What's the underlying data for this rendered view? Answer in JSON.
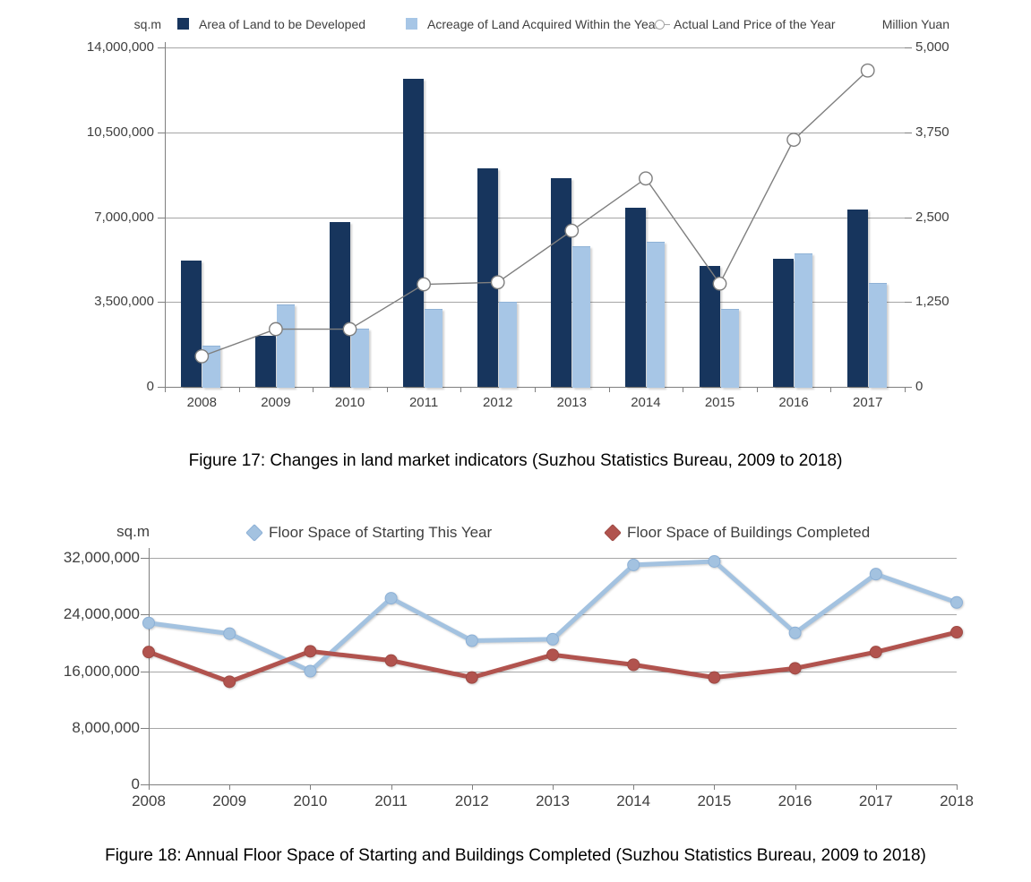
{
  "figure17": {
    "unit_left": "sq.m",
    "unit_right": "Million Yuan",
    "caption": "Figure 17: Changes in land market indicators (Suzhou Statistics Bureau, 2009 to 2018)"
  },
  "figure18": {
    "unit_left": "sq.m",
    "caption": "Figure 18: Annual Floor Space of Starting and Buildings Completed (Suzhou Statistics Bureau, 2009 to 2018)"
  },
  "colors": {
    "navy_bar": "#17355d",
    "light_blue_bar": "#a7c6e6",
    "light_blue_bar_border": "#8fb2d6",
    "price_line": "#7f7f7f",
    "blue_line": "#a3c2e0",
    "blue_line_edge": "#8cb0d6",
    "red_line": "#b1534e",
    "red_line_edge": "#9e4a44",
    "gridline": "#a6a6a6",
    "axis": "#7f7f7f",
    "text": "#3f3f3f"
  },
  "chart_data": [
    {
      "type": "bar",
      "subtype": "combo-bar-line",
      "title": "",
      "categories": [
        "2008",
        "2009",
        "2010",
        "2011",
        "2012",
        "2013",
        "2014",
        "2015",
        "2016",
        "2017"
      ],
      "series": [
        {
          "name": "Area of Land to be Developed",
          "type": "bar",
          "axis": "left",
          "values": [
            5200000,
            2100000,
            6800000,
            12700000,
            9000000,
            8600000,
            7400000,
            5000000,
            5300000,
            7300000
          ]
        },
        {
          "name": "Acreage of Land Acquired Within the Year",
          "type": "bar",
          "axis": "left",
          "values": [
            1700000,
            3400000,
            2400000,
            3200000,
            3500000,
            5800000,
            6000000,
            3200000,
            5500000,
            4300000
          ]
        },
        {
          "name": "Actual Land Price of the Year",
          "type": "line",
          "axis": "right",
          "values": [
            450,
            850,
            850,
            1510,
            1540,
            2300,
            3070,
            1520,
            3640,
            4660
          ]
        }
      ],
      "left_axis": {
        "unit": "sq.m",
        "min": 0,
        "max": 14000000,
        "ticks": [
          "14,000,000",
          "10,500,000",
          "7,000,000",
          "3,500,000",
          "0"
        ]
      },
      "right_axis": {
        "unit": "Million Yuan",
        "min": 0,
        "max": 5000,
        "ticks": [
          "5,000",
          "3,750",
          "2,500",
          "1,250",
          "0"
        ]
      },
      "grid": true,
      "legend_position": "top"
    },
    {
      "type": "line",
      "title": "",
      "categories": [
        "2008",
        "2009",
        "2010",
        "2011",
        "2012",
        "2013",
        "2014",
        "2015",
        "2016",
        "2017",
        "2018"
      ],
      "series": [
        {
          "name": "Floor Space of Starting This Year",
          "values": [
            22800000,
            21300000,
            16000000,
            26300000,
            20300000,
            20500000,
            31000000,
            31500000,
            21400000,
            29700000,
            25700000
          ]
        },
        {
          "name": "Floor Space of Buildings Completed",
          "values": [
            18700000,
            14500000,
            18800000,
            17500000,
            15100000,
            18300000,
            16900000,
            15100000,
            16400000,
            18700000,
            21500000
          ]
        }
      ],
      "y_axis": {
        "unit": "sq.m",
        "min": 0,
        "max": 32000000,
        "ticks": [
          "32,000,000",
          "24,000,000",
          "16,000,000",
          "8,000,000",
          "0"
        ]
      },
      "grid": true,
      "legend_position": "top"
    }
  ]
}
